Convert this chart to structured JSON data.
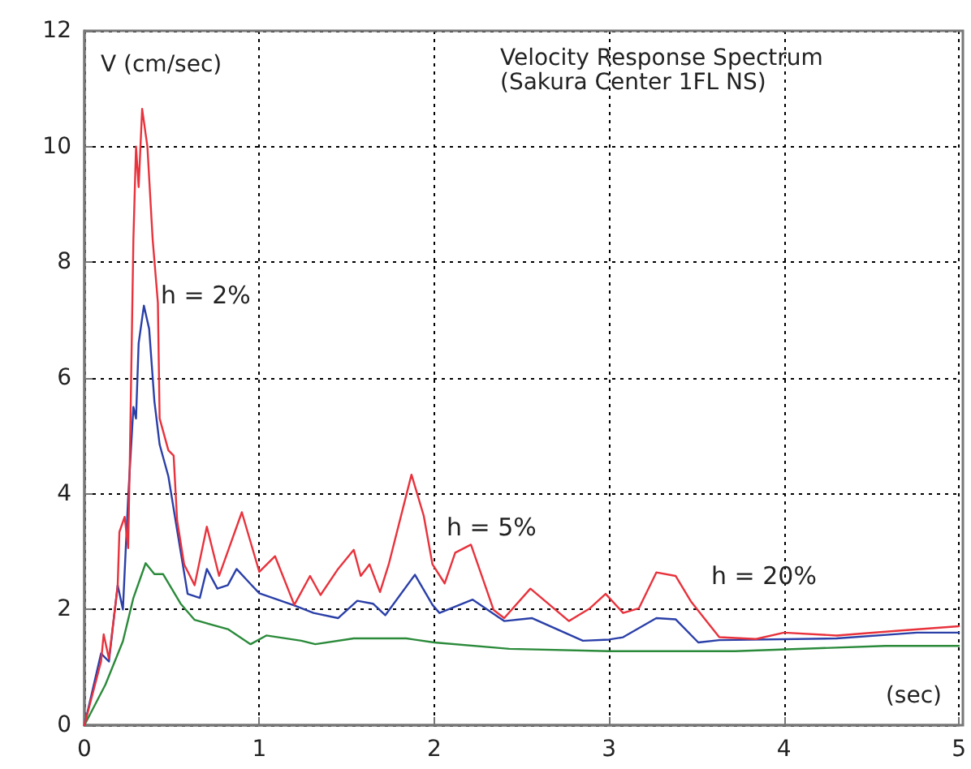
{
  "chart_data": {
    "type": "line",
    "title": "Velocity Response Spectrum",
    "subtitle": "(Sakura Center 1FL NS)",
    "xlabel": "(sec)",
    "ylabel": "V (cm/sec)",
    "xlim": [
      0,
      5
    ],
    "ylim": [
      0,
      12
    ],
    "xticks": [
      0,
      1,
      2,
      3,
      4,
      5
    ],
    "yticks": [
      0,
      2,
      4,
      6,
      8,
      10,
      12
    ],
    "grid": true,
    "marker": "none",
    "line_style": "solid",
    "annotations": [
      "h = 2%",
      "h = 5%",
      "h = 20%"
    ],
    "series": [
      {
        "color": "#e8323c",
        "x": [
          0,
          0.095,
          0.11,
          0.14,
          0.19,
          0.2,
          0.23,
          0.25,
          0.26,
          0.28,
          0.295,
          0.31,
          0.33,
          0.36,
          0.39,
          0.42,
          0.43,
          0.48,
          0.51,
          0.53,
          0.57,
          0.63,
          0.7,
          0.77,
          0.9,
          1.0,
          1.09,
          1.2,
          1.29,
          1.35,
          1.45,
          1.54,
          1.58,
          1.63,
          1.69,
          1.74,
          1.87,
          1.94,
          1.99,
          2.06,
          2.12,
          2.21,
          2.34,
          2.4,
          2.55,
          2.77,
          2.89,
          2.98,
          3.08,
          3.17,
          3.27,
          3.38,
          3.47,
          3.63,
          3.84,
          4.0,
          4.3,
          4.64,
          5.0
        ],
        "values": [
          0,
          1.1,
          1.57,
          1.15,
          2.4,
          3.34,
          3.6,
          3.06,
          4.66,
          8.4,
          10,
          9.3,
          10.65,
          10,
          8.4,
          7.3,
          5.3,
          4.75,
          4.66,
          3.54,
          2.78,
          2.42,
          3.43,
          2.58,
          3.68,
          2.65,
          2.92,
          2.08,
          2.58,
          2.25,
          2.7,
          3.03,
          2.58,
          2.78,
          2.3,
          2.78,
          4.33,
          3.62,
          2.78,
          2.45,
          2.98,
          3.12,
          1.99,
          1.85,
          2.36,
          1.8,
          2.02,
          2.27,
          1.94,
          2.02,
          2.64,
          2.58,
          2.13,
          1.52,
          1.49,
          1.6,
          1.55,
          1.63,
          1.71
        ]
      },
      {
        "color": "#2a3fa8",
        "x": [
          0,
          0.095,
          0.14,
          0.19,
          0.22,
          0.25,
          0.28,
          0.295,
          0.31,
          0.34,
          0.37,
          0.4,
          0.43,
          0.48,
          0.53,
          0.59,
          0.66,
          0.7,
          0.76,
          0.82,
          0.87,
          0.95,
          1.0,
          1.2,
          1.31,
          1.45,
          1.56,
          1.65,
          1.72,
          1.89,
          1.99,
          2.03,
          2.22,
          2.4,
          2.56,
          2.85,
          3.0,
          3.08,
          3.27,
          3.38,
          3.51,
          3.63,
          4.3,
          4.76,
          5.0
        ],
        "values": [
          0,
          1.24,
          1.1,
          2.42,
          2.0,
          3.93,
          5.5,
          5.3,
          6.6,
          7.25,
          6.85,
          5.6,
          4.85,
          4.3,
          3.37,
          2.27,
          2.2,
          2.7,
          2.36,
          2.42,
          2.7,
          2.44,
          2.28,
          2.07,
          1.94,
          1.85,
          2.15,
          2.1,
          1.9,
          2.6,
          2.08,
          1.94,
          2.17,
          1.8,
          1.85,
          1.46,
          1.48,
          1.52,
          1.85,
          1.83,
          1.43,
          1.47,
          1.5,
          1.6,
          1.6
        ]
      },
      {
        "color": "#2a8a3a",
        "x": [
          0,
          0.12,
          0.22,
          0.28,
          0.35,
          0.4,
          0.45,
          0.55,
          0.63,
          0.82,
          0.95,
          1.04,
          1.24,
          1.32,
          1.54,
          1.84,
          2.0,
          2.43,
          3.0,
          3.72,
          4.58,
          5.0
        ],
        "values": [
          0,
          0.7,
          1.45,
          2.2,
          2.8,
          2.61,
          2.61,
          2.1,
          1.82,
          1.66,
          1.4,
          1.55,
          1.46,
          1.4,
          1.5,
          1.5,
          1.43,
          1.32,
          1.28,
          1.28,
          1.37,
          1.37
        ]
      }
    ]
  }
}
